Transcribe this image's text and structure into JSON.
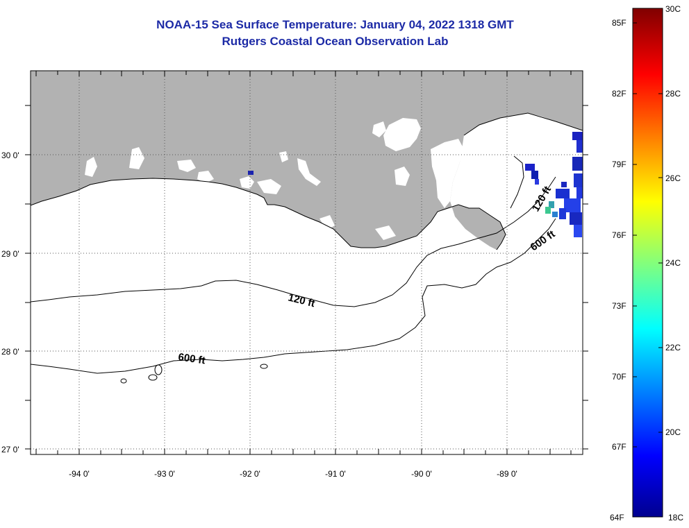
{
  "title": {
    "line1": "NOAA-15 Sea Surface Temperature:  January 04, 2022 1318 GMT",
    "line2": "Rutgers Coastal Ocean Observation Lab"
  },
  "map": {
    "region": "Northern Gulf of Mexico",
    "lon_range": [
      -94.5,
      -88.3
    ],
    "lat_range": [
      26.95,
      30.85
    ],
    "lon_ticks": [
      "-94 0'",
      "-93 0'",
      "-92 0'",
      "-91 0'",
      "-90 0'",
      "-89 0'"
    ],
    "lat_ticks": [
      "30 0'",
      "29 0'",
      "28 0'",
      "27 0'"
    ],
    "contour_labels": [
      "120 ft",
      "600 ft",
      "120 ft",
      "600 ft"
    ],
    "land_color": "#b2b2b2",
    "nodata_color": "#ffffff",
    "grid": "dotted"
  },
  "colorbar": {
    "range_c": [
      18,
      30
    ],
    "range_f": [
      64,
      86
    ],
    "labels_c": [
      "30C",
      "28C",
      "26C",
      "24C",
      "22C",
      "20C",
      "18C"
    ],
    "labels_f": [
      "85F",
      "82F",
      "79F",
      "76F",
      "73F",
      "70F",
      "67F",
      "64F"
    ],
    "colormap": "jet"
  }
}
